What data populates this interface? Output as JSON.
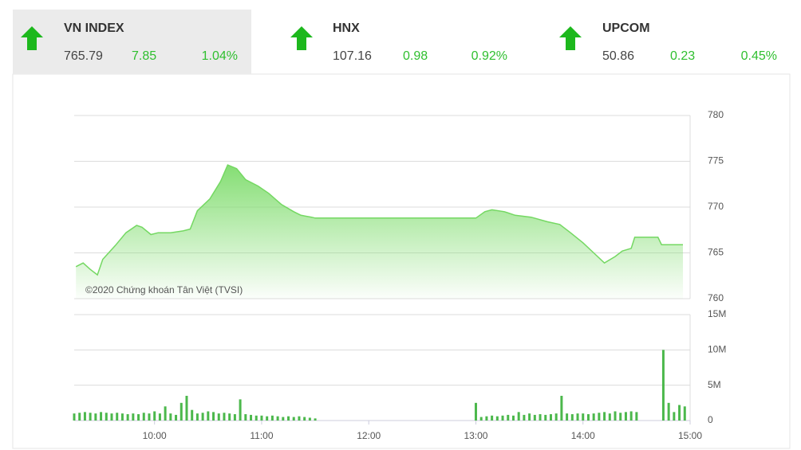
{
  "indices": [
    {
      "name": "VN INDEX",
      "value": 765.79,
      "change": 7.85,
      "percent": "1.04%"
    },
    {
      "name": "HNX",
      "value": 107.16,
      "change": 0.98,
      "percent": "0.92%"
    },
    {
      "name": "UPCOM",
      "value": 50.86,
      "change": 0.23,
      "percent": "0.45%"
    }
  ],
  "chart_data": [
    {
      "type": "area",
      "annotation": "©2020 Chứng khoán Tân Việt (TVSI)",
      "color": "#74d862",
      "x": [
        "09:16",
        "09:20",
        "09:24",
        "09:28",
        "09:31",
        "09:38",
        "09:44",
        "09:50",
        "09:53",
        "09:58",
        "10:02",
        "10:09",
        "10:16",
        "10:20",
        "10:24",
        "10:31",
        "10:37",
        "10:41",
        "10:46",
        "10:51",
        "10:58",
        "11:04",
        "11:11",
        "11:18",
        "11:22",
        "11:28",
        "11:30",
        "13:00",
        "13:05",
        "13:09",
        "13:16",
        "13:22",
        "13:31",
        "13:40",
        "13:47",
        "13:53",
        "14:00",
        "14:06",
        "14:12",
        "14:18",
        "14:22",
        "14:27",
        "14:29",
        "14:42",
        "14:44",
        "14:56"
      ],
      "values": [
        763.5,
        763.9,
        763.2,
        762.6,
        764.3,
        765.8,
        767.2,
        768.0,
        767.8,
        767.0,
        767.2,
        767.2,
        767.4,
        767.6,
        769.6,
        770.9,
        772.8,
        774.6,
        774.2,
        773.0,
        772.3,
        771.5,
        770.3,
        769.5,
        769.1,
        768.9,
        768.8,
        768.8,
        769.5,
        769.7,
        769.5,
        769.1,
        768.9,
        768.4,
        768.1,
        767.2,
        766.1,
        765.0,
        763.9,
        764.6,
        765.2,
        765.5,
        766.7,
        766.7,
        765.9,
        765.9
      ],
      "xlim": [
        "09:15",
        "15:00"
      ],
      "ylim": [
        760,
        780
      ],
      "yticks": [
        760,
        765,
        770,
        775,
        780
      ],
      "grid": true
    },
    {
      "type": "bar",
      "color": "#4cb84c",
      "x": [
        "09:15",
        "09:18",
        "09:21",
        "09:24",
        "09:27",
        "09:30",
        "09:33",
        "09:36",
        "09:39",
        "09:42",
        "09:45",
        "09:48",
        "09:51",
        "09:54",
        "09:57",
        "10:00",
        "10:03",
        "10:06",
        "10:09",
        "10:12",
        "10:15",
        "10:18",
        "10:21",
        "10:24",
        "10:27",
        "10:30",
        "10:33",
        "10:36",
        "10:39",
        "10:42",
        "10:45",
        "10:48",
        "10:51",
        "10:54",
        "10:57",
        "11:00",
        "11:03",
        "11:06",
        "11:09",
        "11:12",
        "11:15",
        "11:18",
        "11:21",
        "11:24",
        "11:27",
        "11:30",
        "13:00",
        "13:03",
        "13:06",
        "13:09",
        "13:12",
        "13:15",
        "13:18",
        "13:21",
        "13:24",
        "13:27",
        "13:30",
        "13:33",
        "13:36",
        "13:39",
        "13:42",
        "13:45",
        "13:48",
        "13:51",
        "13:54",
        "13:57",
        "14:00",
        "14:03",
        "14:06",
        "14:09",
        "14:12",
        "14:15",
        "14:18",
        "14:21",
        "14:24",
        "14:27",
        "14:30",
        "14:45",
        "14:48",
        "14:51",
        "14:54",
        "14:57"
      ],
      "values": [
        1.0,
        1.1,
        1.2,
        1.1,
        1.0,
        1.2,
        1.1,
        1.0,
        1.1,
        1.0,
        0.9,
        1.0,
        0.9,
        1.1,
        1.0,
        1.3,
        1.0,
        2.0,
        1.0,
        0.8,
        2.5,
        3.5,
        1.5,
        1.0,
        1.1,
        1.3,
        1.2,
        1.0,
        1.1,
        1.0,
        0.9,
        3.0,
        0.9,
        0.8,
        0.7,
        0.7,
        0.6,
        0.7,
        0.6,
        0.5,
        0.6,
        0.5,
        0.6,
        0.5,
        0.4,
        0.3,
        2.5,
        0.5,
        0.6,
        0.7,
        0.6,
        0.7,
        0.8,
        0.7,
        1.2,
        0.8,
        1.0,
        0.8,
        0.9,
        0.8,
        0.9,
        1.0,
        3.5,
        1.0,
        0.9,
        1.0,
        1.0,
        0.9,
        1.0,
        1.1,
        1.2,
        1.0,
        1.3,
        1.1,
        1.2,
        1.3,
        1.2,
        10.0,
        2.5,
        1.2,
        2.2,
        2.0
      ],
      "xlim": [
        "09:15",
        "15:00"
      ],
      "xticks": [
        "10:00",
        "11:00",
        "12:00",
        "13:00",
        "14:00",
        "15:00"
      ],
      "ylim": [
        0,
        15
      ],
      "yticks": [
        0,
        {
          "value": 5,
          "label": "5M"
        },
        {
          "value": 10,
          "label": "10M"
        },
        {
          "value": 15,
          "label": "15M"
        }
      ],
      "grid": true
    }
  ]
}
